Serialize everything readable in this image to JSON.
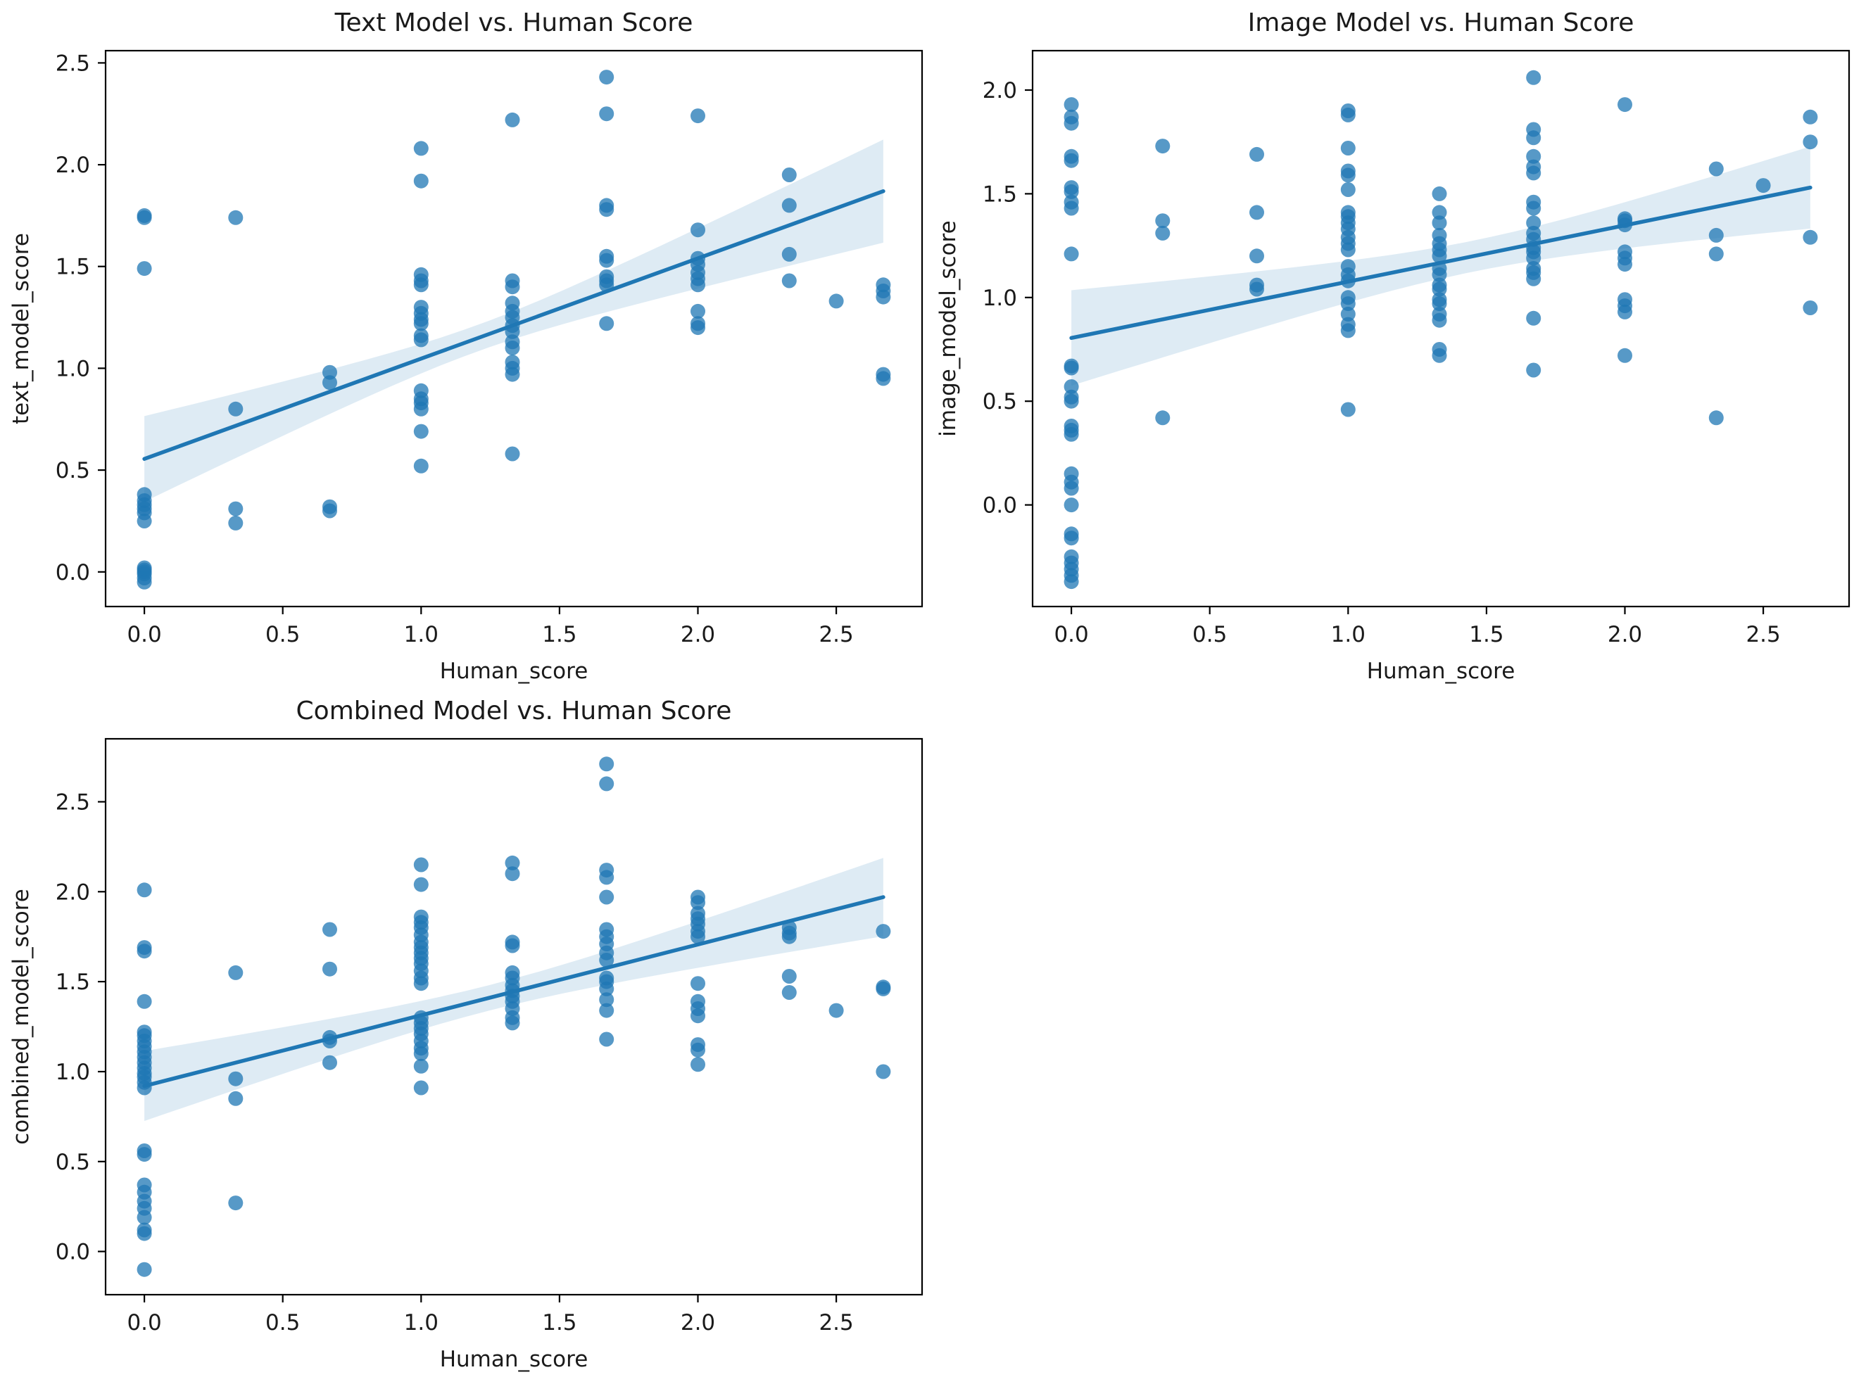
{
  "figure": {
    "background": "#ffffff",
    "accent_color": "#1f77b4",
    "band_opacity": 0.15,
    "dot_opacity": 0.75,
    "dot_radius": 10.5,
    "line_width": 5.5,
    "frame_color": "#000000",
    "text_color": "#1a1a1a"
  },
  "chart_data": [
    {
      "id": "text-model",
      "type": "scatter",
      "title": "Text Model vs. Human Score",
      "xlabel": "Human_score",
      "ylabel": "text_model_score",
      "xlim": [
        -0.14,
        2.81
      ],
      "ylim": [
        -0.17,
        2.56
      ],
      "xticks": [
        0.0,
        0.5,
        1.0,
        1.5,
        2.0,
        2.5
      ],
      "yticks": [
        0.0,
        0.5,
        1.0,
        1.5,
        2.0,
        2.5
      ],
      "grid": false,
      "legend": null,
      "regression": {
        "intercept": 0.555,
        "slope": 0.4925,
        "x_start": 0,
        "x_end": 2.67,
        "band": {
          "xm": 1.2,
          "c1": 0.0042,
          "c2": 0.0277
        }
      },
      "points": {
        "0": [
          1.75,
          1.74,
          1.49,
          0.38,
          0.35,
          0.33,
          0.31,
          0.29,
          0.25,
          0.02,
          0.01,
          0.0,
          -0.01,
          -0.03,
          -0.05
        ],
        "0.33": [
          1.74,
          0.8,
          0.31,
          0.24
        ],
        "0.67": [
          0.98,
          0.93,
          0.32,
          0.3
        ],
        "1": [
          2.08,
          1.92,
          1.46,
          1.43,
          1.41,
          1.3,
          1.27,
          1.24,
          1.22,
          1.16,
          1.14,
          0.89,
          0.85,
          0.83,
          0.8,
          0.69,
          0.52
        ],
        "1.33": [
          2.22,
          1.43,
          1.4,
          1.32,
          1.28,
          1.25,
          1.21,
          1.18,
          1.13,
          1.1,
          1.03,
          1.0,
          0.97,
          0.58
        ],
        "1.67": [
          2.43,
          2.25,
          1.8,
          1.78,
          1.55,
          1.53,
          1.45,
          1.43,
          1.41,
          1.22
        ],
        "2": [
          2.24,
          1.68,
          1.54,
          1.51,
          1.47,
          1.44,
          1.41,
          1.28,
          1.22,
          1.2
        ],
        "2.33": [
          1.95,
          1.8,
          1.56,
          1.43
        ],
        "2.5": [
          1.33
        ],
        "2.67": [
          1.41,
          1.38,
          1.35,
          0.97,
          0.95
        ]
      }
    },
    {
      "id": "image-model",
      "type": "scatter",
      "title": "Image Model vs. Human Score",
      "xlabel": "Human_score",
      "ylabel": "image_model_score",
      "xlim": [
        -0.14,
        2.81
      ],
      "ylim": [
        -0.49,
        2.19
      ],
      "xticks": [
        0.0,
        0.5,
        1.0,
        1.5,
        2.0,
        2.5
      ],
      "yticks": [
        0.0,
        0.5,
        1.0,
        1.5,
        2.0
      ],
      "grid": false,
      "legend": null,
      "regression": {
        "intercept": 0.805,
        "slope": 0.2715,
        "x_start": 0,
        "x_end": 2.67,
        "band": {
          "xm": 1.45,
          "c1": 0.0056,
          "c2": 0.0225
        }
      },
      "points": {
        "0": [
          1.93,
          1.87,
          1.84,
          1.68,
          1.66,
          1.53,
          1.51,
          1.46,
          1.43,
          1.21,
          0.67,
          0.66,
          0.57,
          0.52,
          0.5,
          0.38,
          0.36,
          0.34,
          0.15,
          0.11,
          0.08,
          0.0,
          -0.14,
          -0.16,
          -0.25,
          -0.28,
          -0.31,
          -0.34,
          -0.37
        ],
        "0.33": [
          1.73,
          1.37,
          1.31,
          0.42
        ],
        "0.67": [
          1.69,
          1.41,
          1.2,
          1.06,
          1.04
        ],
        "1": [
          1.9,
          1.88,
          1.72,
          1.61,
          1.59,
          1.52,
          1.41,
          1.39,
          1.36,
          1.33,
          1.29,
          1.26,
          1.23,
          1.15,
          1.11,
          1.08,
          1.0,
          0.97,
          0.92,
          0.87,
          0.84,
          0.46
        ],
        "1.33": [
          1.5,
          1.41,
          1.36,
          1.3,
          1.26,
          1.23,
          1.2,
          1.14,
          1.11,
          1.06,
          1.04,
          0.99,
          0.97,
          0.92,
          0.89,
          0.75,
          0.72
        ],
        "1.67": [
          2.06,
          1.81,
          1.77,
          1.68,
          1.63,
          1.6,
          1.46,
          1.43,
          1.36,
          1.31,
          1.28,
          1.24,
          1.22,
          1.19,
          1.14,
          1.12,
          1.09,
          0.9,
          0.65
        ],
        "2": [
          1.93,
          1.38,
          1.37,
          1.35,
          1.22,
          1.19,
          1.16,
          0.99,
          0.96,
          0.93,
          0.72
        ],
        "2.33": [
          1.62,
          1.3,
          1.21,
          0.42
        ],
        "2.5": [
          1.54
        ],
        "2.67": [
          1.87,
          1.75,
          1.29,
          0.95
        ]
      }
    },
    {
      "id": "combined-model",
      "type": "scatter",
      "title": "Combined Model vs. Human Score",
      "xlabel": "Human_score",
      "ylabel": "combined_model_score",
      "xlim": [
        -0.14,
        2.81
      ],
      "ylim": [
        -0.24,
        2.85
      ],
      "xticks": [
        0.0,
        0.5,
        1.0,
        1.5,
        2.0,
        2.5
      ],
      "yticks": [
        0.0,
        0.5,
        1.0,
        1.5,
        2.0,
        2.5
      ],
      "grid": false,
      "legend": null,
      "regression": {
        "intercept": 0.92,
        "slope": 0.3933,
        "x_start": 0,
        "x_end": 2.67,
        "band": {
          "xm": 1.25,
          "c1": 0.005,
          "c2": 0.021
        }
      },
      "points": {
        "0": [
          2.01,
          1.69,
          1.67,
          1.39,
          1.22,
          1.2,
          1.17,
          1.14,
          1.11,
          1.08,
          1.05,
          1.02,
          0.99,
          0.97,
          0.94,
          0.91,
          0.56,
          0.54,
          0.37,
          0.33,
          0.28,
          0.24,
          0.19,
          0.12,
          0.1,
          -0.1
        ],
        "0.33": [
          1.55,
          0.96,
          0.85,
          0.27
        ],
        "0.67": [
          1.79,
          1.57,
          1.19,
          1.17,
          1.05
        ],
        "1": [
          2.15,
          2.04,
          1.86,
          1.83,
          1.8,
          1.76,
          1.72,
          1.69,
          1.66,
          1.63,
          1.6,
          1.56,
          1.52,
          1.49,
          1.3,
          1.27,
          1.24,
          1.21,
          1.17,
          1.13,
          1.1,
          1.03,
          0.91
        ],
        "1.33": [
          2.16,
          2.1,
          1.72,
          1.7,
          1.55,
          1.52,
          1.48,
          1.45,
          1.42,
          1.39,
          1.35,
          1.3,
          1.27
        ],
        "1.67": [
          2.71,
          2.6,
          2.12,
          2.08,
          1.97,
          1.79,
          1.75,
          1.71,
          1.66,
          1.62,
          1.52,
          1.5,
          1.46,
          1.4,
          1.34,
          1.18
        ],
        "2": [
          1.97,
          1.94,
          1.88,
          1.85,
          1.82,
          1.78,
          1.75,
          1.49,
          1.39,
          1.35,
          1.31,
          1.15,
          1.12,
          1.04
        ],
        "2.33": [
          1.8,
          1.77,
          1.75,
          1.53,
          1.44
        ],
        "2.5": [
          1.34
        ],
        "2.67": [
          1.78,
          1.47,
          1.46,
          1.0
        ]
      }
    }
  ]
}
